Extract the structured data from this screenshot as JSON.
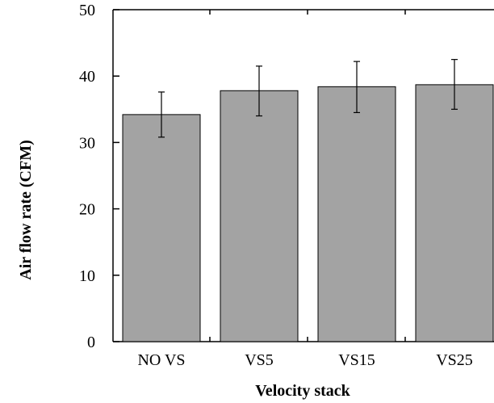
{
  "chart_data": {
    "type": "bar",
    "title": "",
    "xlabel": "Velocity stack",
    "ylabel": "Air flow rate (CFM)",
    "categories": [
      "NO VS",
      "VS5",
      "VS15",
      "VS25"
    ],
    "values": [
      34.2,
      37.8,
      38.4,
      38.7
    ],
    "error_low": [
      30.8,
      34.0,
      34.5,
      35.0
    ],
    "error_high": [
      37.6,
      41.5,
      42.2,
      42.5
    ],
    "ylim": [
      0,
      50
    ],
    "yticks": [
      0,
      10,
      20,
      30,
      40,
      50
    ],
    "grid": false,
    "bar_color": "#a3a3a3"
  }
}
